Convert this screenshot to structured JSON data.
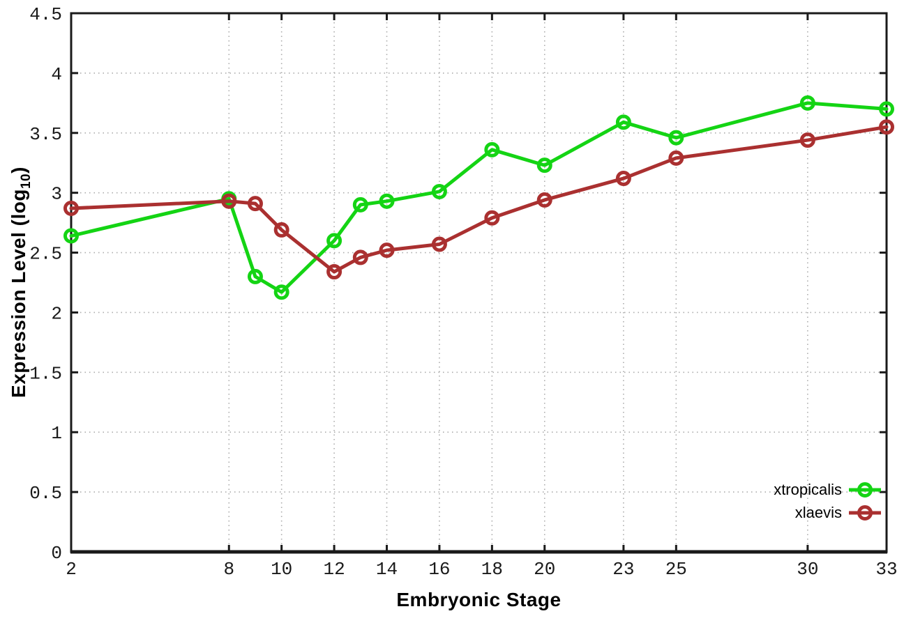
{
  "chart_data": {
    "type": "line",
    "xlabel": "Embryonic Stage",
    "ylabel": {
      "pre": "Expression Level (log",
      "sub": "10",
      "post": ")"
    },
    "xlim": [
      2,
      33
    ],
    "ylim": [
      0,
      4.5
    ],
    "x_ticks": [
      2,
      8,
      10,
      12,
      14,
      16,
      18,
      20,
      23,
      25,
      30,
      33
    ],
    "y_ticks": [
      0,
      0.5,
      1,
      1.5,
      2,
      2.5,
      3,
      3.5,
      4,
      4.5
    ],
    "grid": true,
    "legend_position": "bottom-right",
    "x": [
      2,
      8,
      9,
      10,
      12,
      13,
      14,
      16,
      18,
      20,
      23,
      25,
      30,
      33
    ],
    "series": [
      {
        "name": "xtropicalis",
        "color": "#14D414",
        "values": [
          2.64,
          2.95,
          2.3,
          2.17,
          2.6,
          2.9,
          2.93,
          3.01,
          3.36,
          3.23,
          3.59,
          3.46,
          3.75,
          3.7
        ]
      },
      {
        "name": "xlaevis",
        "color": "#AA3030",
        "values": [
          2.87,
          2.93,
          2.91,
          2.69,
          2.34,
          2.46,
          2.52,
          2.57,
          2.79,
          2.94,
          3.12,
          3.29,
          3.44,
          3.55
        ]
      }
    ],
    "colors": {
      "axis": "#1a1a1a",
      "grid": "#ababab",
      "tick_label": "#1a1a1a",
      "background": "#ffffff"
    }
  }
}
